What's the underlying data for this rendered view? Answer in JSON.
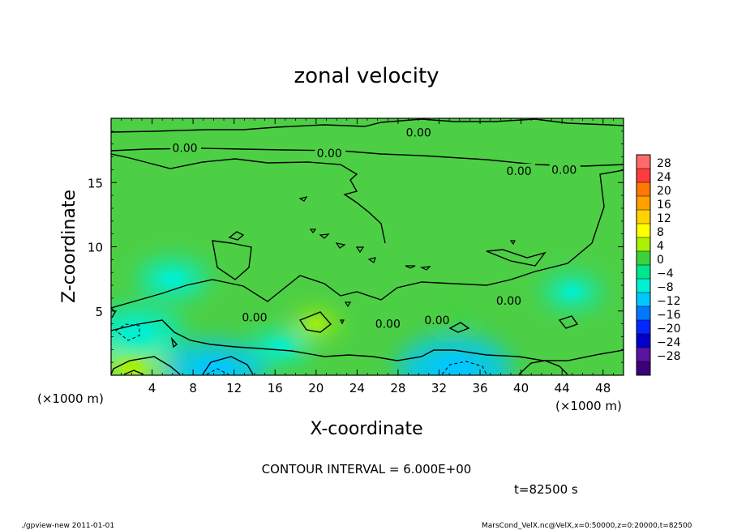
{
  "chart_data": {
    "type": "heatmap",
    "title": "zonal velocity",
    "xlabel": "X-coordinate",
    "ylabel": "Z-coordinate",
    "x_unit_label_left": "(×1000 m)",
    "x_unit_label_right": "(×1000 m)",
    "xlim": [
      0,
      50
    ],
    "ylim": [
      0,
      20
    ],
    "x_ticks": [
      4,
      8,
      12,
      16,
      20,
      24,
      28,
      32,
      36,
      40,
      44,
      48
    ],
    "y_ticks": [
      5,
      10,
      15
    ],
    "contour_interval_text": "CONTOUR INTERVAL = 6.000E+00",
    "time_label": "t=82500 s",
    "contour_labels": [
      {
        "text": "0.00",
        "x": 7.2,
        "z": 17.7
      },
      {
        "text": "0.00",
        "x": 21.3,
        "z": 17.3
      },
      {
        "text": "0.00",
        "x": 30.0,
        "z": 18.9
      },
      {
        "text": "0.00",
        "x": 39.8,
        "z": 15.9
      },
      {
        "text": "0.00",
        "x": 44.2,
        "z": 16.0
      },
      {
        "text": "0.00",
        "x": 14.0,
        "z": 4.5
      },
      {
        "text": "0.00",
        "x": 27.0,
        "z": 4.0
      },
      {
        "text": "0.00",
        "x": 31.8,
        "z": 4.3
      },
      {
        "text": "0.00",
        "x": 38.8,
        "z": 5.8
      }
    ],
    "colorbar": {
      "levels": [
        28,
        24,
        20,
        16,
        12,
        8,
        4,
        0,
        -4,
        -8,
        -12,
        -16,
        -20,
        -24,
        -28
      ],
      "colors": [
        "#ff6a6a",
        "#ff3c3c",
        "#ff7800",
        "#ffa000",
        "#ffd200",
        "#ffff00",
        "#aaf000",
        "#3cd23c",
        "#00e68c",
        "#00f0d2",
        "#00c8ff",
        "#0078ff",
        "#0028ff",
        "#0000c8",
        "#5a14a0",
        "#3c0078"
      ]
    },
    "field_features": [
      {
        "kind": "positive",
        "x": 2.0,
        "z": 0.6,
        "value": 6
      },
      {
        "kind": "positive",
        "x": 20.0,
        "z": 4.0,
        "value": 4
      },
      {
        "kind": "positive",
        "x": 33.5,
        "z": 4.5,
        "value": 3
      },
      {
        "kind": "negative",
        "x": 2.5,
        "z": 3.3,
        "value": -8
      },
      {
        "kind": "negative",
        "x": 10.0,
        "z": 0.4,
        "value": -9
      },
      {
        "kind": "negative",
        "x": 33.5,
        "z": 0.5,
        "value": -10
      },
      {
        "kind": "negative",
        "x": 6.0,
        "z": 7.5,
        "value": -6
      },
      {
        "kind": "negative",
        "x": 45.0,
        "z": 6.5,
        "value": -5
      },
      {
        "kind": "negative",
        "x": 16.5,
        "z": 2.2,
        "value": -5
      }
    ]
  },
  "footer": {
    "left": "./gpview-new   2011-01-01",
    "right": "MarsCond_VelX.nc@VelX,x=0:50000,z=0:20000,t=82500"
  }
}
